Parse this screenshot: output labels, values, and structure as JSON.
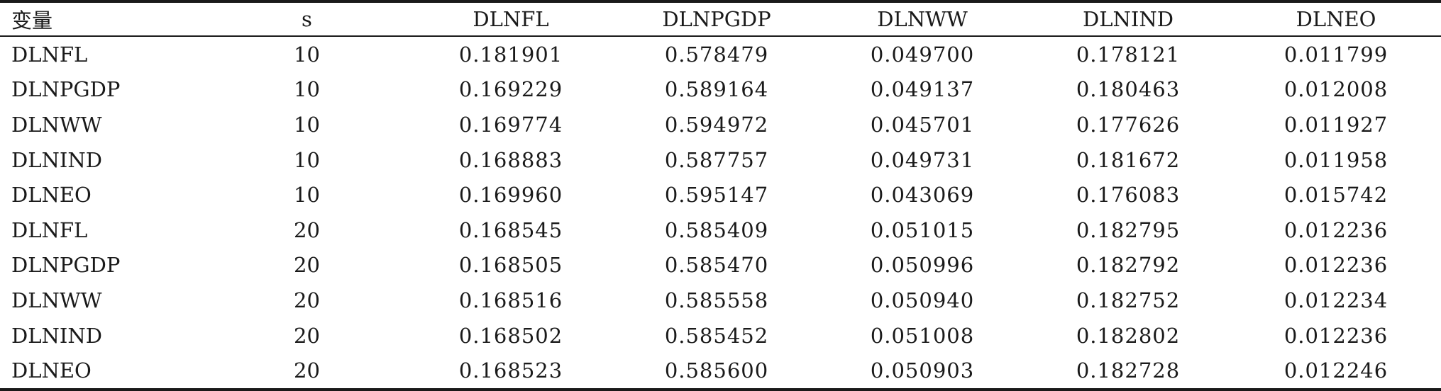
{
  "table": {
    "headers": [
      "变量",
      "s",
      "DLNFL",
      "DLNPGDP",
      "DLNWW",
      "DLNIND",
      "DLNEO"
    ],
    "rows": [
      [
        "DLNFL",
        "10",
        "0.181901",
        "0.578479",
        "0.049700",
        "0.178121",
        "0.011799"
      ],
      [
        "DLNPGDP",
        "10",
        "0.169229",
        "0.589164",
        "0.049137",
        "0.180463",
        "0.012008"
      ],
      [
        "DLNWW",
        "10",
        "0.169774",
        "0.594972",
        "0.045701",
        "0.177626",
        "0.011927"
      ],
      [
        "DLNIND",
        "10",
        "0.168883",
        "0.587757",
        "0.049731",
        "0.181672",
        "0.011958"
      ],
      [
        "DLNEO",
        "10",
        "0.169960",
        "0.595147",
        "0.043069",
        "0.176083",
        "0.015742"
      ],
      [
        "DLNFL",
        "20",
        "0.168545",
        "0.585409",
        "0.051015",
        "0.182795",
        "0.012236"
      ],
      [
        "DLNPGDP",
        "20",
        "0.168505",
        "0.585470",
        "0.050996",
        "0.182792",
        "0.012236"
      ],
      [
        "DLNWW",
        "20",
        "0.168516",
        "0.585558",
        "0.050940",
        "0.182752",
        "0.012234"
      ],
      [
        "DLNIND",
        "20",
        "0.168502",
        "0.585452",
        "0.051008",
        "0.182802",
        "0.012236"
      ],
      [
        "DLNEO",
        "20",
        "0.168523",
        "0.585600",
        "0.050903",
        "0.182728",
        "0.012246"
      ]
    ]
  }
}
